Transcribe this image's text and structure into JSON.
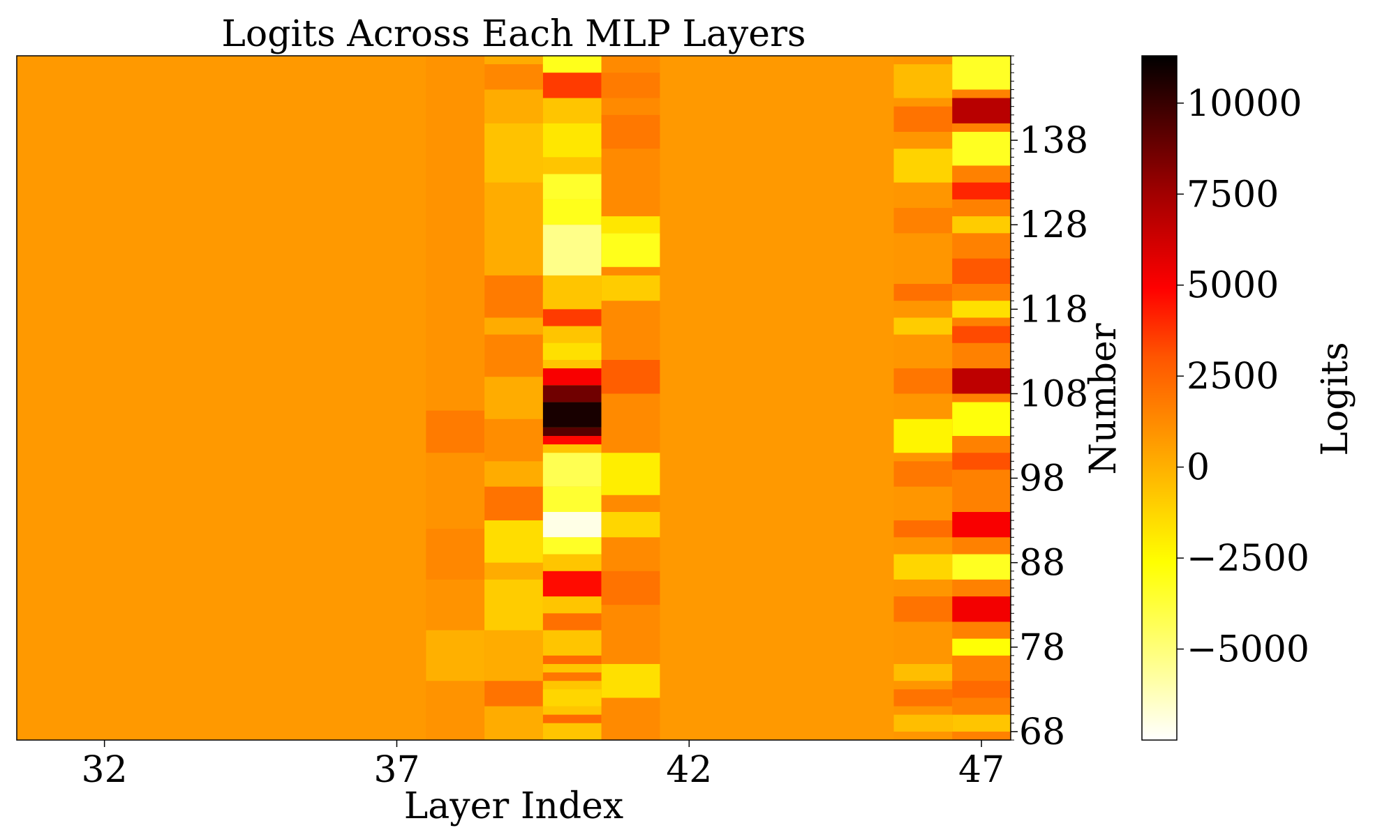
{
  "chart_data": {
    "type": "heatmap",
    "title": "Logits Across Each MLP Layers",
    "xlabel": "Layer Index",
    "ylabel": "Number",
    "colorbar_label": "Logits",
    "colormap": "hot_r",
    "colorbar_range": [
      -7500,
      11300
    ],
    "x_layers": [
      31.5,
      32,
      33,
      34,
      35,
      36,
      37,
      38,
      39,
      40,
      41,
      42,
      43,
      44,
      45,
      46,
      47
    ],
    "x_ticks": [
      32,
      37,
      42,
      47
    ],
    "y_range": [
      67,
      148
    ],
    "y_ticks": [
      68,
      78,
      88,
      98,
      108,
      118,
      128,
      138
    ],
    "colorbar_ticks": [
      {
        "value": -5000,
        "label": "−5000"
      },
      {
        "value": -2500,
        "label": "−2500"
      },
      {
        "value": 0,
        "label": "0"
      },
      {
        "value": 2500,
        "label": "2500"
      },
      {
        "value": 5000,
        "label": "5000"
      },
      {
        "value": 7500,
        "label": "7500"
      },
      {
        "value": 10000,
        "label": "10000"
      }
    ],
    "cells": [
      {
        "layer": 38,
        "y0": 67,
        "y1": 148,
        "value": 400
      },
      {
        "layer": 38,
        "y0": 101,
        "y1": 106,
        "value": 1200
      },
      {
        "layer": 38,
        "y0": 86,
        "y1": 92,
        "value": 800
      },
      {
        "layer": 38,
        "y0": 74,
        "y1": 80,
        "value": -400
      },
      {
        "layer": 39,
        "y0": 67,
        "y1": 148,
        "value": -300
      },
      {
        "layer": 39,
        "y0": 144,
        "y1": 147,
        "value": 800
      },
      {
        "layer": 39,
        "y0": 133,
        "y1": 140,
        "value": -900
      },
      {
        "layer": 39,
        "y0": 117,
        "y1": 122,
        "value": 1200
      },
      {
        "layer": 39,
        "y0": 110,
        "y1": 115,
        "value": 900
      },
      {
        "layer": 39,
        "y0": 100,
        "y1": 105,
        "value": 600
      },
      {
        "layer": 39,
        "y0": 93,
        "y1": 97,
        "value": 1500
      },
      {
        "layer": 39,
        "y0": 88,
        "y1": 93,
        "value": -1700
      },
      {
        "layer": 39,
        "y0": 80,
        "y1": 86,
        "value": -1200
      },
      {
        "layer": 39,
        "y0": 71,
        "y1": 74,
        "value": 1500
      },
      {
        "layer": 40,
        "y0": 67,
        "y1": 148,
        "value": -1000
      },
      {
        "layer": 40,
        "y0": 146,
        "y1": 148,
        "value": -3200
      },
      {
        "layer": 40,
        "y0": 143,
        "y1": 146,
        "value": 3200
      },
      {
        "layer": 40,
        "y0": 136,
        "y1": 140,
        "value": -2000
      },
      {
        "layer": 40,
        "y0": 131,
        "y1": 134,
        "value": -3500
      },
      {
        "layer": 40,
        "y0": 128,
        "y1": 131,
        "value": -3200
      },
      {
        "layer": 40,
        "y0": 122,
        "y1": 128,
        "value": -5200
      },
      {
        "layer": 40,
        "y0": 118,
        "y1": 120,
        "value": -1000
      },
      {
        "layer": 40,
        "y0": 116,
        "y1": 118,
        "value": 3200
      },
      {
        "layer": 40,
        "y0": 112,
        "y1": 114,
        "value": -1800
      },
      {
        "layer": 40,
        "y0": 109,
        "y1": 111,
        "value": 5000
      },
      {
        "layer": 40,
        "y0": 107,
        "y1": 109,
        "value": 9000
      },
      {
        "layer": 40,
        "y0": 104,
        "y1": 107,
        "value": 10800
      },
      {
        "layer": 40,
        "y0": 103,
        "y1": 104,
        "value": 9500
      },
      {
        "layer": 40,
        "y0": 102,
        "y1": 103,
        "value": 4600
      },
      {
        "layer": 40,
        "y0": 97,
        "y1": 101,
        "value": -4200
      },
      {
        "layer": 40,
        "y0": 94,
        "y1": 97,
        "value": -3600
      },
      {
        "layer": 40,
        "y0": 91,
        "y1": 94,
        "value": -7000
      },
      {
        "layer": 40,
        "y0": 89,
        "y1": 91,
        "value": -3400
      },
      {
        "layer": 40,
        "y0": 84,
        "y1": 87,
        "value": 4500
      },
      {
        "layer": 40,
        "y0": 80,
        "y1": 82,
        "value": 1600
      },
      {
        "layer": 40,
        "y0": 76,
        "y1": 77,
        "value": 1800
      },
      {
        "layer": 40,
        "y0": 74,
        "y1": 75,
        "value": 1400
      },
      {
        "layer": 40,
        "y0": 71,
        "y1": 73,
        "value": -1500
      },
      {
        "layer": 40,
        "y0": 69,
        "y1": 70,
        "value": 1800
      },
      {
        "layer": 41,
        "y0": 67,
        "y1": 148,
        "value": 700
      },
      {
        "layer": 41,
        "y0": 143,
        "y1": 146,
        "value": 1200
      },
      {
        "layer": 41,
        "y0": 137,
        "y1": 141,
        "value": 1300
      },
      {
        "layer": 41,
        "y0": 127,
        "y1": 129,
        "value": -2000
      },
      {
        "layer": 41,
        "y0": 123,
        "y1": 127,
        "value": -3200
      },
      {
        "layer": 41,
        "y0": 119,
        "y1": 122,
        "value": -1200
      },
      {
        "layer": 41,
        "y0": 108,
        "y1": 112,
        "value": 2200
      },
      {
        "layer": 41,
        "y0": 96,
        "y1": 101,
        "value": -2200
      },
      {
        "layer": 41,
        "y0": 91,
        "y1": 94,
        "value": -1500
      },
      {
        "layer": 41,
        "y0": 83,
        "y1": 87,
        "value": 1500
      },
      {
        "layer": 41,
        "y0": 72,
        "y1": 76,
        "value": -1800
      },
      {
        "layer": 46,
        "y0": 67,
        "y1": 148,
        "value": 300
      },
      {
        "layer": 46,
        "y0": 143,
        "y1": 147,
        "value": -700
      },
      {
        "layer": 46,
        "y0": 139,
        "y1": 142,
        "value": 1500
      },
      {
        "layer": 46,
        "y0": 133,
        "y1": 137,
        "value": -1400
      },
      {
        "layer": 46,
        "y0": 127,
        "y1": 130,
        "value": 1000
      },
      {
        "layer": 46,
        "y0": 119,
        "y1": 121,
        "value": 1600
      },
      {
        "layer": 46,
        "y0": 115,
        "y1": 117,
        "value": -1200
      },
      {
        "layer": 46,
        "y0": 108,
        "y1": 111,
        "value": 1400
      },
      {
        "layer": 46,
        "y0": 101,
        "y1": 105,
        "value": -2400
      },
      {
        "layer": 46,
        "y0": 97,
        "y1": 100,
        "value": 1300
      },
      {
        "layer": 46,
        "y0": 91,
        "y1": 93,
        "value": 1700
      },
      {
        "layer": 46,
        "y0": 86,
        "y1": 89,
        "value": -1500
      },
      {
        "layer": 46,
        "y0": 81,
        "y1": 84,
        "value": 1500
      },
      {
        "layer": 46,
        "y0": 74,
        "y1": 76,
        "value": -800
      },
      {
        "layer": 46,
        "y0": 71,
        "y1": 73,
        "value": 1500
      },
      {
        "layer": 46,
        "y0": 68,
        "y1": 70,
        "value": -800
      },
      {
        "layer": 47,
        "y0": 67,
        "y1": 148,
        "value": 1000
      },
      {
        "layer": 47,
        "y0": 144,
        "y1": 148,
        "value": -3400
      },
      {
        "layer": 47,
        "y0": 140,
        "y1": 143,
        "value": 7200
      },
      {
        "layer": 47,
        "y0": 135,
        "y1": 139,
        "value": -3300
      },
      {
        "layer": 47,
        "y0": 131,
        "y1": 133,
        "value": 3800
      },
      {
        "layer": 47,
        "y0": 127,
        "y1": 129,
        "value": -1200
      },
      {
        "layer": 47,
        "y0": 121,
        "y1": 124,
        "value": 2400
      },
      {
        "layer": 47,
        "y0": 117,
        "y1": 119,
        "value": -1800
      },
      {
        "layer": 47,
        "y0": 114,
        "y1": 116,
        "value": 2800
      },
      {
        "layer": 47,
        "y0": 108,
        "y1": 111,
        "value": 7000
      },
      {
        "layer": 47,
        "y0": 103,
        "y1": 107,
        "value": -2900
      },
      {
        "layer": 47,
        "y0": 99,
        "y1": 101,
        "value": 2600
      },
      {
        "layer": 47,
        "y0": 91,
        "y1": 94,
        "value": 5000
      },
      {
        "layer": 47,
        "y0": 86,
        "y1": 89,
        "value": -3300
      },
      {
        "layer": 47,
        "y0": 81,
        "y1": 84,
        "value": 5200
      },
      {
        "layer": 47,
        "y0": 77,
        "y1": 79,
        "value": -2800
      },
      {
        "layer": 47,
        "y0": 72,
        "y1": 74,
        "value": 1800
      },
      {
        "layer": 47,
        "y0": 68,
        "y1": 70,
        "value": -1000
      }
    ]
  }
}
